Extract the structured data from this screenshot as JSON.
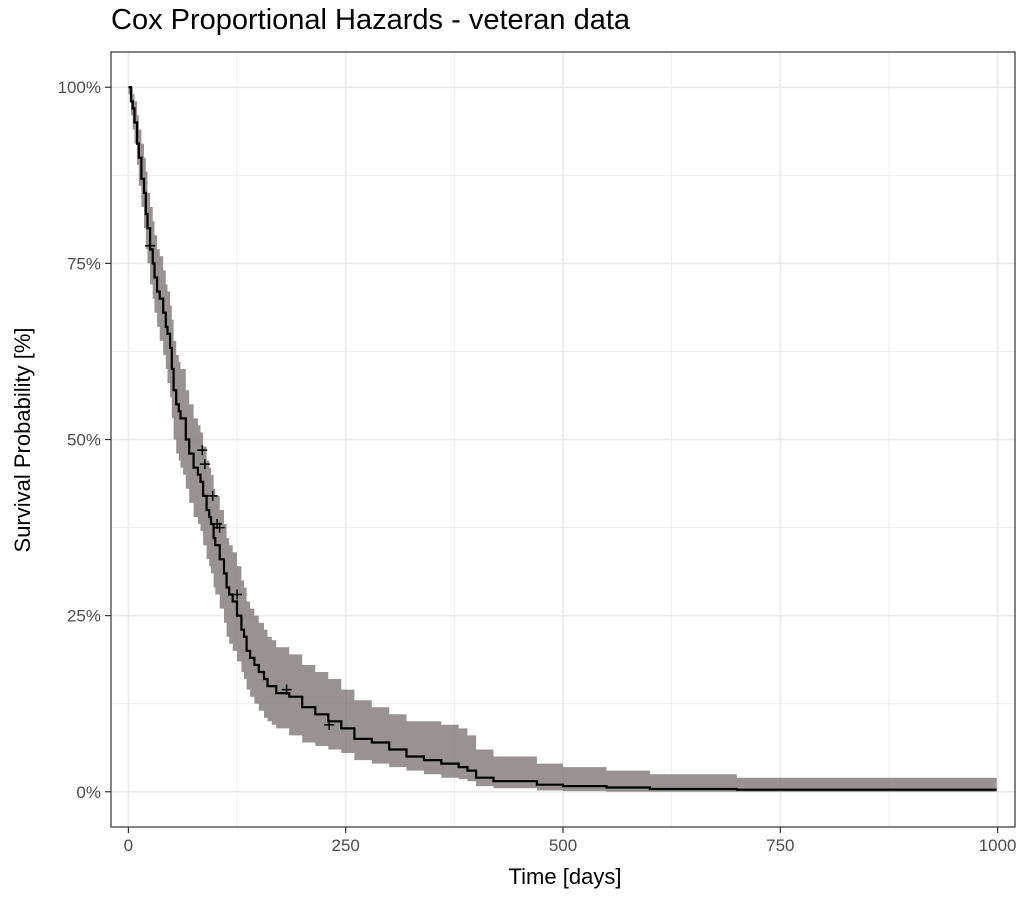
{
  "chart_data": {
    "type": "line",
    "title": "Cox Proportional Hazards - veteran data",
    "xlabel": "Time [days]",
    "ylabel": "Survival Probability [%]",
    "xlim": [
      -20,
      1020
    ],
    "ylim": [
      -5,
      105
    ],
    "x_ticks": [
      0,
      250,
      500,
      750,
      1000
    ],
    "x_tick_labels": [
      "0",
      "250",
      "500",
      "750",
      "1000"
    ],
    "y_ticks": [
      0,
      25,
      50,
      75,
      100
    ],
    "y_tick_labels": [
      "0%",
      "25%",
      "50%",
      "75%",
      "100%"
    ],
    "grid": true,
    "legend": "none",
    "colors": {
      "line": "#000000",
      "band": "#7f7777",
      "grid": "#ebebeb",
      "panel_border": "#333333"
    },
    "series": [
      {
        "x": [
          0,
          3,
          5,
          7,
          10,
          12,
          15,
          18,
          20,
          22,
          25,
          28,
          30,
          33,
          36,
          40,
          43,
          45,
          48,
          50,
          52,
          55,
          58,
          60,
          63,
          66,
          70,
          75,
          80,
          83,
          86,
          90,
          93,
          95,
          98,
          100,
          105,
          110,
          113,
          116,
          120,
          125,
          130,
          133,
          136,
          140,
          145,
          150,
          156,
          160,
          165,
          170,
          185,
          200,
          215,
          230,
          245,
          260,
          280,
          300,
          320,
          340,
          360,
          380,
          390,
          400,
          420,
          470,
          500,
          550,
          600,
          700,
          800,
          999
        ],
        "estimate": [
          100,
          98,
          97,
          95,
          92,
          90,
          87,
          85,
          82,
          80,
          77,
          75,
          73,
          71,
          70,
          68,
          66,
          65,
          63,
          60,
          57,
          55,
          54,
          53,
          53,
          50,
          48,
          46,
          45,
          44,
          42,
          40,
          39,
          38,
          36,
          35,
          33,
          31,
          29,
          28,
          27,
          25,
          23,
          22,
          20,
          19,
          18,
          17,
          16,
          15,
          15,
          14,
          13.5,
          12,
          11,
          10,
          9,
          7.5,
          7,
          6,
          5,
          4.5,
          4,
          3.5,
          3,
          2,
          1.5,
          1,
          0.8,
          0.6,
          0.4,
          0.3,
          0.3,
          0.3
        ],
        "lower": [
          99,
          96,
          94,
          92,
          89,
          86,
          83,
          80,
          77,
          75,
          72,
          70,
          68,
          66,
          64,
          62,
          60,
          58,
          56,
          53,
          50,
          48,
          47,
          46,
          45,
          43,
          41,
          39,
          38,
          37,
          35,
          33,
          32,
          31,
          29,
          28,
          26,
          24,
          22,
          21,
          20,
          18.5,
          17,
          16,
          14.5,
          13.5,
          12.5,
          11.5,
          10.5,
          10,
          9.5,
          9,
          8,
          7,
          6.5,
          6,
          5.5,
          4.5,
          4,
          3.5,
          3,
          2.5,
          2,
          1.8,
          1.5,
          0.8,
          0.5,
          0.2,
          0.1,
          0,
          0,
          0,
          0,
          0
        ],
        "upper": [
          100,
          100,
          99,
          98,
          96,
          94,
          92,
          90,
          88,
          85,
          83,
          81,
          79,
          77,
          76,
          74,
          72,
          71,
          69,
          67,
          64,
          62,
          61,
          60,
          60,
          57,
          55,
          53,
          52,
          51,
          49,
          47,
          46,
          45,
          43,
          42,
          40,
          38,
          36,
          35,
          34,
          32,
          30,
          29,
          27,
          26,
          25,
          24,
          23,
          22,
          21.5,
          20.5,
          19.5,
          18,
          17,
          16,
          14.5,
          13,
          12,
          11,
          10,
          10,
          9.5,
          9,
          8,
          6,
          5,
          4,
          3.5,
          3,
          2.5,
          2,
          2,
          2
        ]
      }
    ],
    "censor_marks": [
      {
        "x": 25,
        "y": 77.5
      },
      {
        "x": 85,
        "y": 48.5
      },
      {
        "x": 88,
        "y": 46.5
      },
      {
        "x": 97,
        "y": 42
      },
      {
        "x": 102,
        "y": 38
      },
      {
        "x": 105,
        "y": 37.5
      },
      {
        "x": 125,
        "y": 28
      },
      {
        "x": 182,
        "y": 14.5
      },
      {
        "x": 231,
        "y": 9.5
      }
    ]
  }
}
